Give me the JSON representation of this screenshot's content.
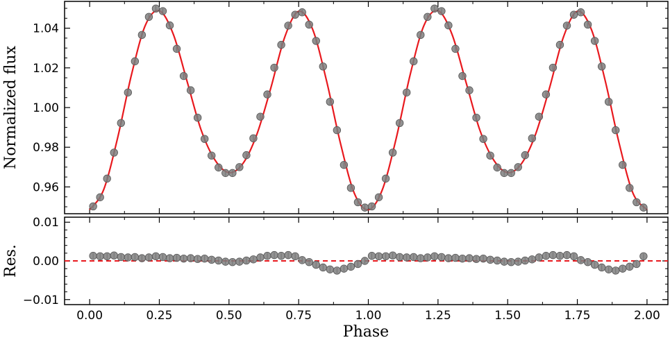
{
  "chart_data": [
    {
      "type": "scatter",
      "panel": "top",
      "ylabel": "Normalized flux",
      "xlabel": "",
      "xlim": [
        -0.09,
        2.075
      ],
      "ylim": [
        0.9465,
        1.0535
      ],
      "xticks": [
        0.0,
        0.25,
        0.5,
        0.75,
        1.0,
        1.25,
        1.5,
        1.75,
        2.0
      ],
      "xtick_labels": [
        "0.00",
        "0.25",
        "0.50",
        "0.75",
        "1.00",
        "1.25",
        "1.50",
        "1.75",
        "2.00"
      ],
      "yticks": [
        0.96,
        0.98,
        1.0,
        1.02,
        1.04
      ],
      "ytick_labels": [
        "0.96",
        "0.98",
        "1.00",
        "1.02",
        "1.04"
      ],
      "grid": false,
      "series": [
        {
          "kind": "points",
          "color": "#7f7f7f",
          "x": [
            0.0125,
            0.0375,
            0.0625,
            0.0875,
            0.1125,
            0.1375,
            0.1625,
            0.1875,
            0.2125,
            0.2375,
            0.2625,
            0.2875,
            0.3125,
            0.3375,
            0.3625,
            0.3875,
            0.4125,
            0.4375,
            0.4625,
            0.4875,
            0.5125,
            0.5375,
            0.5625,
            0.5875,
            0.6125,
            0.6375,
            0.6625,
            0.6875,
            0.7125,
            0.7375,
            0.7625,
            0.7875,
            0.8125,
            0.8375,
            0.8625,
            0.8875,
            0.9125,
            0.9375,
            0.9625,
            0.9875,
            1.0125,
            1.0375,
            1.0625,
            1.0875,
            1.1125,
            1.1375,
            1.1625,
            1.1875,
            1.2125,
            1.2375,
            1.2625,
            1.2875,
            1.3125,
            1.3375,
            1.3625,
            1.3875,
            1.4125,
            1.4375,
            1.4625,
            1.4875,
            1.5125,
            1.5375,
            1.5625,
            1.5875,
            1.6125,
            1.6375,
            1.6625,
            1.6875,
            1.7125,
            1.7375,
            1.7625,
            1.7875,
            1.8125,
            1.8375,
            1.8625,
            1.8875,
            1.9125,
            1.9375,
            1.9625,
            1.9875
          ],
          "y": [
            0.9502,
            0.9548,
            0.9642,
            0.9773,
            0.9922,
            1.0076,
            1.0233,
            1.0366,
            1.0457,
            1.0499,
            1.0486,
            1.0414,
            1.0296,
            1.0159,
            1.0087,
            0.9949,
            0.9842,
            0.9758,
            0.9698,
            0.967,
            0.967,
            0.97,
            0.976,
            0.9845,
            0.9954,
            1.0066,
            1.0201,
            1.0316,
            1.0413,
            1.0468,
            1.048,
            1.0418,
            1.0336,
            1.0207,
            1.0029,
            0.9886,
            0.9711,
            0.9595,
            0.9523,
            0.9496,
            0.9502,
            0.9548,
            0.9642,
            0.9773,
            0.9922,
            1.0076,
            1.0233,
            1.0366,
            1.0457,
            1.0499,
            1.0486,
            1.0414,
            1.0296,
            1.0159,
            1.0087,
            0.9949,
            0.9842,
            0.9758,
            0.9698,
            0.967,
            0.967,
            0.97,
            0.976,
            0.9845,
            0.9954,
            1.0066,
            1.0201,
            1.0316,
            1.0413,
            1.0468,
            1.048,
            1.0418,
            1.0336,
            1.0207,
            1.0029,
            0.9886,
            0.9711,
            0.9595,
            0.9523,
            0.9496
          ]
        },
        {
          "kind": "model-curve",
          "color": "#e8191e",
          "x": [
            0.0,
            0.05,
            0.1,
            0.15,
            0.2,
            0.25,
            0.3,
            0.35,
            0.4,
            0.45,
            0.5,
            0.55,
            0.6,
            0.65,
            0.7,
            0.75,
            0.8,
            0.85,
            0.9,
            0.95,
            1.0,
            1.05,
            1.1,
            1.15,
            1.2,
            1.25,
            1.3,
            1.35,
            1.4,
            1.45,
            1.5,
            1.55,
            1.6,
            1.65,
            1.7,
            1.75,
            1.8,
            1.85,
            1.9,
            1.95,
            2.0
          ],
          "y": [
            0.9485,
            0.9585,
            0.9845,
            1.0165,
            1.0415,
            1.0488,
            1.037,
            1.013,
            0.9887,
            0.9735,
            0.9672,
            0.9718,
            0.9865,
            1.0098,
            1.0355,
            1.0485,
            1.0395,
            1.0135,
            0.982,
            0.9567,
            0.9485,
            0.9585,
            0.9845,
            1.0165,
            1.0415,
            1.0488,
            1.037,
            1.013,
            0.9887,
            0.9735,
            0.9672,
            0.9718,
            0.9865,
            1.0098,
            1.0355,
            1.0485,
            1.0395,
            1.0135,
            0.982,
            0.9567,
            0.9485
          ]
        }
      ]
    },
    {
      "type": "scatter",
      "panel": "bottom",
      "ylabel": "Res.",
      "xlabel": "Phase",
      "xlim": [
        -0.09,
        2.075
      ],
      "ylim": [
        -0.0113,
        0.0113
      ],
      "xticks": [
        0.0,
        0.25,
        0.5,
        0.75,
        1.0,
        1.25,
        1.5,
        1.75,
        2.0
      ],
      "xtick_labels": [
        "0.00",
        "0.25",
        "0.50",
        "0.75",
        "1.00",
        "1.25",
        "1.50",
        "1.75",
        "2.00"
      ],
      "yticks": [
        -0.01,
        0.0,
        0.01
      ],
      "ytick_labels": [
        "−0.01",
        "0.00",
        "0.01"
      ],
      "reference_line": {
        "y": 0.0,
        "style": "dashed",
        "color": "#e8191e"
      },
      "grid": false,
      "series": [
        {
          "kind": "points",
          "color": "#7f7f7f",
          "x": [
            0.0125,
            0.0375,
            0.0625,
            0.0875,
            0.1125,
            0.1375,
            0.1625,
            0.1875,
            0.2125,
            0.2375,
            0.2625,
            0.2875,
            0.3125,
            0.3375,
            0.3625,
            0.3875,
            0.4125,
            0.4375,
            0.4625,
            0.4875,
            0.5125,
            0.5375,
            0.5625,
            0.5875,
            0.6125,
            0.6375,
            0.6625,
            0.6875,
            0.7125,
            0.7375,
            0.7625,
            0.7875,
            0.8125,
            0.8375,
            0.8625,
            0.8875,
            0.9125,
            0.9375,
            0.9625,
            0.9875,
            1.0125,
            1.0375,
            1.0625,
            1.0875,
            1.1125,
            1.1375,
            1.1625,
            1.1875,
            1.2125,
            1.2375,
            1.2625,
            1.2875,
            1.3125,
            1.3375,
            1.3625,
            1.3875,
            1.4125,
            1.4375,
            1.4625,
            1.4875,
            1.5125,
            1.5375,
            1.5625,
            1.5875,
            1.6125,
            1.6375,
            1.6625,
            1.6875,
            1.7125,
            1.7375,
            1.7625,
            1.7875,
            1.8125,
            1.8375,
            1.8625,
            1.8875,
            1.9125,
            1.9375,
            1.9625,
            1.9875
          ],
          "y": [
            0.0013,
            0.0012,
            0.0012,
            0.0014,
            0.001,
            0.0009,
            0.001,
            0.0007,
            0.0009,
            0.0012,
            0.001,
            0.0007,
            0.0008,
            0.0006,
            0.0007,
            0.0005,
            0.0006,
            0.0003,
            0.0001,
            -0.0002,
            -0.0003,
            -0.0002,
            0.0001,
            0.0004,
            0.0009,
            0.0013,
            0.0015,
            0.0013,
            0.0015,
            0.0012,
            0.0002,
            -0.0003,
            -0.001,
            -0.0017,
            -0.0022,
            -0.0025,
            -0.002,
            -0.0015,
            -0.0008,
            0.0,
            0.0013,
            0.0012,
            0.0012,
            0.0014,
            0.001,
            0.0009,
            0.001,
            0.0007,
            0.0009,
            0.0012,
            0.001,
            0.0007,
            0.0008,
            0.0006,
            0.0007,
            0.0005,
            0.0006,
            0.0003,
            0.0001,
            -0.0002,
            -0.0003,
            -0.0002,
            0.0001,
            0.0004,
            0.0009,
            0.0013,
            0.0015,
            0.0013,
            0.0015,
            0.0012,
            0.0002,
            -0.0003,
            -0.001,
            -0.0017,
            -0.0022,
            -0.0025,
            -0.002,
            -0.0015,
            -0.0008,
            0.0012
          ]
        }
      ]
    }
  ]
}
